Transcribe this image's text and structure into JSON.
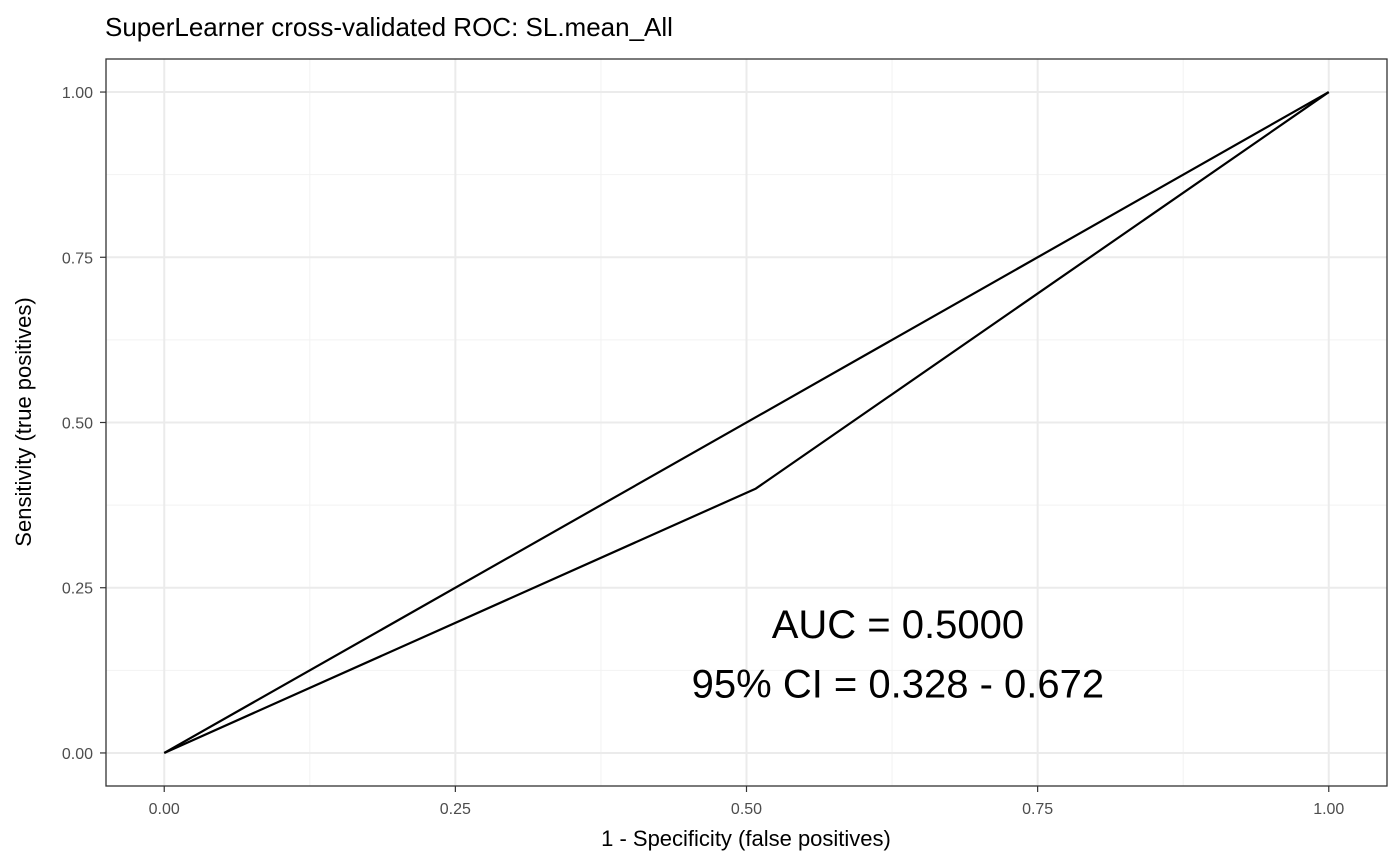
{
  "chart_data": {
    "type": "line",
    "title": "SuperLearner cross-validated ROC: SL.mean_All",
    "xlabel": "1 - Specificity (false positives)",
    "ylabel": "Sensitivity (true positives)",
    "xlim": [
      -0.05,
      1.05
    ],
    "ylim": [
      -0.05,
      1.05
    ],
    "x_ticks": [
      0.0,
      0.25,
      0.5,
      0.75,
      1.0
    ],
    "x_tick_labels": [
      "0.00",
      "0.25",
      "0.50",
      "0.75",
      "1.00"
    ],
    "y_ticks": [
      0.0,
      0.25,
      0.5,
      0.75,
      1.0
    ],
    "y_tick_labels": [
      "0.00",
      "0.25",
      "0.50",
      "0.75",
      "1.00"
    ],
    "grid": true,
    "series": [
      {
        "x": [
          0.0,
          0.508,
          1.0
        ],
        "y": [
          0.0,
          0.4,
          1.0
        ],
        "color": "#000000"
      },
      {
        "x": [
          0.0,
          1.0
        ],
        "y": [
          0.0,
          1.0
        ],
        "color": "#000000"
      }
    ],
    "annotations": [
      {
        "text": "AUC = 0.5000",
        "x": 0.63,
        "y": 0.19
      },
      {
        "text": "95% CI = 0.328 - 0.672",
        "x": 0.63,
        "y": 0.1
      }
    ]
  }
}
